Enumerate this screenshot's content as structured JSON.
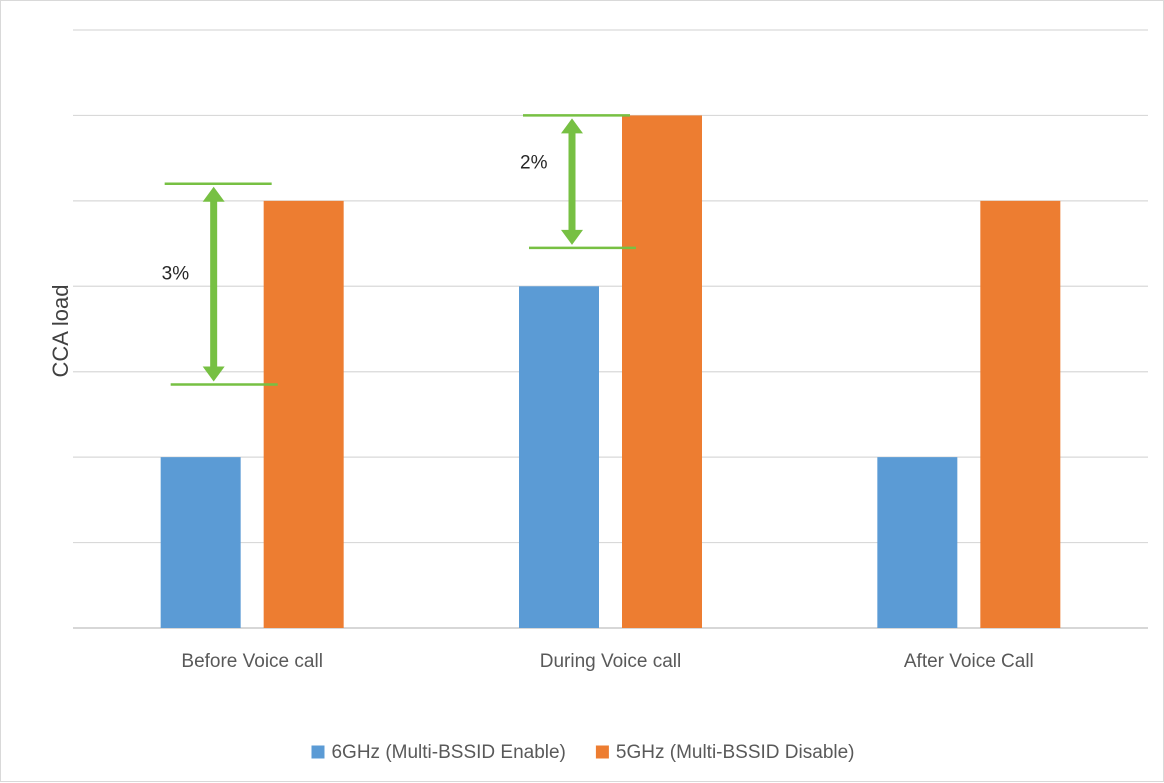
{
  "chart_data": {
    "type": "bar",
    "title": "",
    "xlabel": "",
    "ylabel": "CCA load",
    "categories": [
      "Before Voice call",
      "During Voice call",
      "After Voice Call"
    ],
    "series": [
      {
        "name": "6GHz (Multi-BSSID Enable)",
        "color": "#5b9bd5",
        "values": [
          2,
          4,
          2
        ]
      },
      {
        "name": "5GHz (Multi-BSSID Disable)",
        "color": "#ed7d31",
        "values": [
          5,
          6,
          5
        ]
      }
    ],
    "ylim": [
      0,
      7
    ],
    "grid": true,
    "y_tick_labels_shown": false,
    "legend_position": "bottom",
    "annotations": [
      {
        "category_index": 0,
        "label": "3%",
        "from": 2.85,
        "to": 5.2,
        "color": "#77c043"
      },
      {
        "category_index": 1,
        "label": "2%",
        "from": 4.45,
        "to": 6.0,
        "color": "#77c043"
      }
    ]
  }
}
